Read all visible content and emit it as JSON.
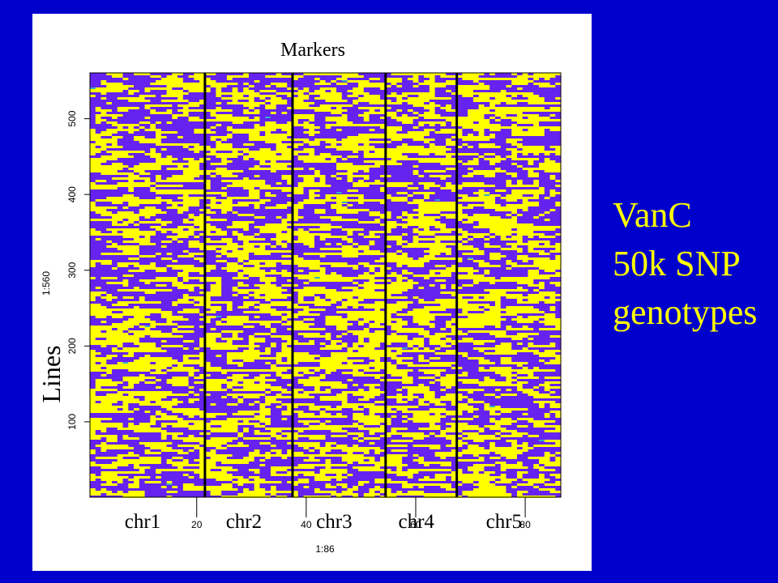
{
  "chart_data": {
    "type": "heatmap",
    "title": "Markers",
    "ylabel": "Lines",
    "x_axis_title": "1:86",
    "y_axis_title": "1:560",
    "xlim": [
      1,
      86
    ],
    "ylim": [
      1,
      560
    ],
    "x_ticks": [
      20,
      40,
      60,
      80
    ],
    "y_ticks": [
      100,
      200,
      300,
      400,
      500
    ],
    "chromosome_labels": [
      "chr1",
      "chr2",
      "chr3",
      "chr4",
      "chr5"
    ],
    "chromosome_boundaries": [
      21.5,
      37.5,
      54.5,
      67.5
    ],
    "colors": {
      "allele_a": "#ffff00",
      "allele_b": "#6622ee",
      "het": "#33aacc"
    },
    "grid": false
  },
  "side_text": {
    "line1": "VanC",
    "line2": "50k SNP",
    "line3": "genotypes"
  }
}
